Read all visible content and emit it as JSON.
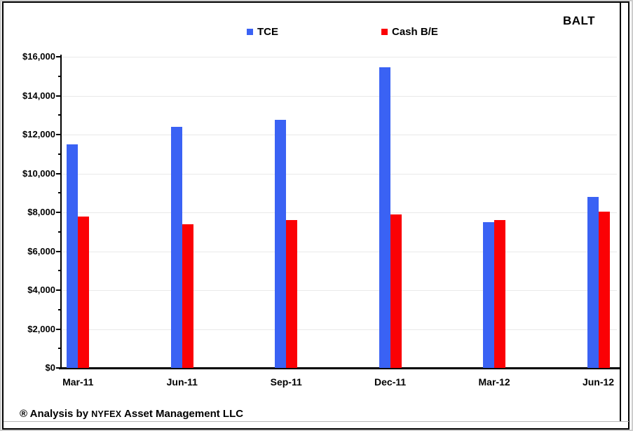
{
  "header": {
    "title": "BALT"
  },
  "footer": {
    "prefix": "® Analysis by",
    "brand": "NYFEX",
    "suffix": "Asset Management LLC"
  },
  "chart_data": {
    "type": "bar",
    "title": "BALT",
    "categories": [
      "Mar-11",
      "Jun-11",
      "Sep-11",
      "Dec-11",
      "Mar-12",
      "Jun-12"
    ],
    "series": [
      {
        "name": "TCE",
        "color": "#3a62f4",
        "values": [
          11500,
          12400,
          12750,
          15450,
          7500,
          8800
        ]
      },
      {
        "name": "Cash B/E",
        "color": "#fb0105",
        "values": [
          7800,
          7400,
          7600,
          7900,
          7600,
          8050
        ]
      }
    ],
    "xlabel": "",
    "ylabel": "",
    "ylim": [
      0,
      16000
    ],
    "ytick_step": 2000,
    "minor_tick_step": 1000,
    "ytick_labels": [
      "$0",
      "$2,000",
      "$4,000",
      "$6,000",
      "$8,000",
      "$10,000",
      "$12,000",
      "$14,000",
      "$16,000"
    ],
    "grid": "horizontal-major",
    "legend_position": "top-center",
    "gridline_color": "#e9e9e9"
  }
}
